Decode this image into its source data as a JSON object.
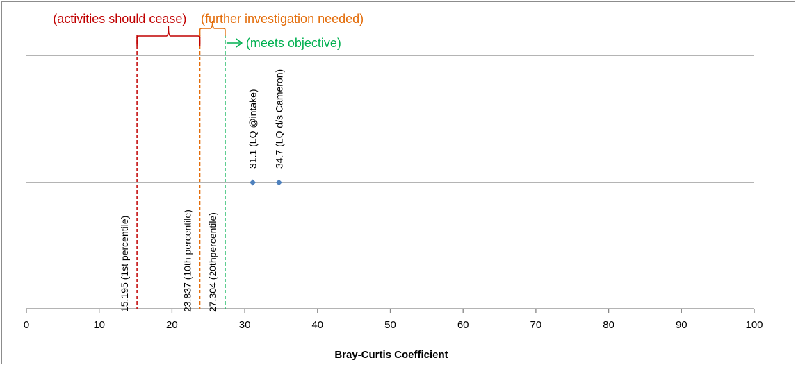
{
  "chart_data": {
    "type": "scatter",
    "xlabel": "Bray-Curtis Coefficient",
    "xlim": [
      0,
      100
    ],
    "x_ticks": [
      "0",
      "10",
      "20",
      "30",
      "40",
      "50",
      "60",
      "70",
      "80",
      "90",
      "100"
    ],
    "grid": "horizontal",
    "points": [
      {
        "x": 31.1,
        "label": "31.1 (LQ @intake)"
      },
      {
        "x": 34.7,
        "label": "34.7  (LQ d/s Cameron)"
      }
    ],
    "thresholds": [
      {
        "x": 15.195,
        "label": "15.195 (1st percentile)",
        "color": "#c00000"
      },
      {
        "x": 23.837,
        "label": "23.837 (10th percentile)",
        "color": "#e36c09"
      },
      {
        "x": 27.304,
        "label": "27.304 (20thpercentile)",
        "color": "#00b050"
      }
    ],
    "zones": [
      {
        "label": "(activities should cease)",
        "color": "#c00000"
      },
      {
        "label": "(further investigation needed)",
        "color": "#e36c09"
      },
      {
        "label": "(meets objective)",
        "color": "#00b050"
      }
    ],
    "point_color": "#4f81bd"
  }
}
